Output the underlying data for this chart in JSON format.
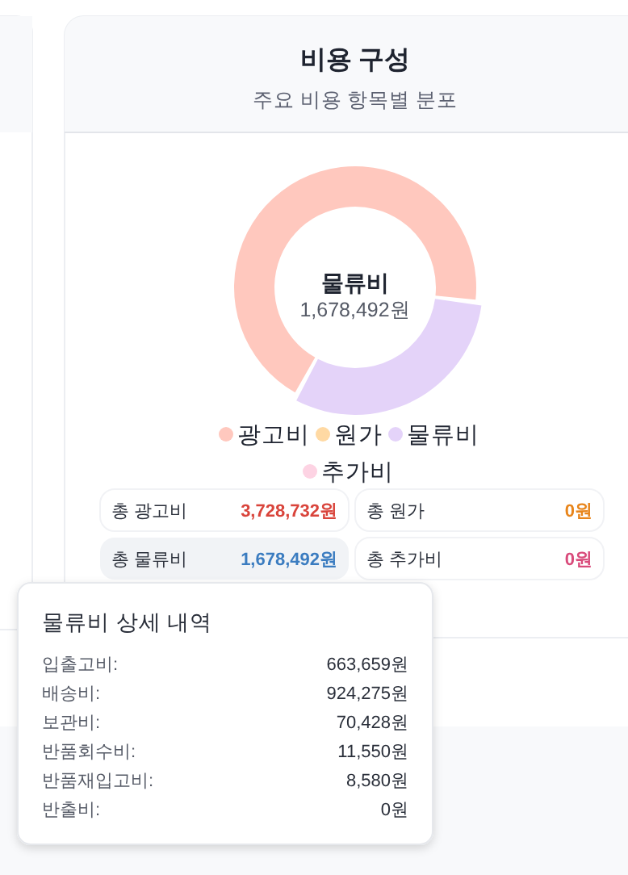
{
  "chart_data": [
    {
      "type": "donut",
      "title": "비용 구성",
      "subtitle": "주요 비용 항목별 분포",
      "categories": [
        "광고비",
        "원가",
        "물류비",
        "추가비"
      ],
      "values": [
        69,
        0,
        31,
        0
      ],
      "colors": [
        "#ffc8be",
        "#ffd9a3",
        "#e4d3f9",
        "#fdd3e3"
      ],
      "legend": "bottom",
      "annotations": [
        "물류비",
        "1,678,492원",
        "총 광고비",
        "3,728,732원",
        "총 원가",
        "0원",
        "총 물류비",
        "1,678,492원",
        "총 추가비",
        "0원"
      ]
    },
    {
      "type": "other",
      "title": "물류비 상세 내역",
      "annotations": [
        "입출고비:",
        "663,659원",
        "배송비:",
        "924,275원",
        "보관비:",
        "70,428원",
        "반품회수비:",
        "11,550원",
        "반품재입고비:",
        "8,580원",
        "반출비:",
        "0원"
      ]
    }
  ]
}
